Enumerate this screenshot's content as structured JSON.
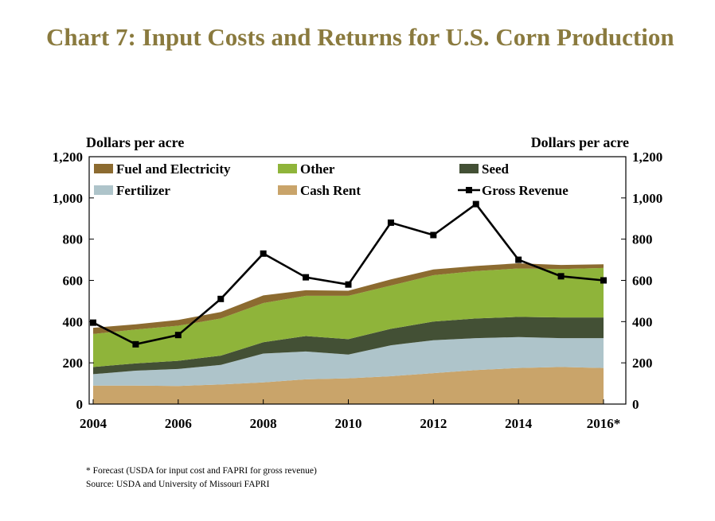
{
  "title": "Chart 7: Input Costs and Returns for U.S. Corn Production",
  "left_axis_label": "Dollars per acre",
  "right_axis_label": "Dollars per acre",
  "footnotes": [
    "* Forecast (USDA for input cost and FAPRI for gross revenue)",
    "Source: USDA and University of Missouri FAPRI"
  ],
  "chart_data": {
    "type": "area",
    "stacked": true,
    "x": [
      2004,
      2005,
      2006,
      2007,
      2008,
      2009,
      2010,
      2011,
      2012,
      2013,
      2014,
      2015,
      2016
    ],
    "x_tick_labels": [
      "2004",
      "2006",
      "2008",
      "2010",
      "2012",
      "2014",
      "2016*"
    ],
    "x_tick_values": [
      2004,
      2006,
      2008,
      2010,
      2012,
      2014,
      2016
    ],
    "ylim": [
      0,
      1200
    ],
    "y_ticks": [
      0,
      200,
      400,
      600,
      800,
      1000,
      1200
    ],
    "y_tick_labels": [
      "0",
      "200",
      "400",
      "600",
      "800",
      "1,000",
      "1,200"
    ],
    "grid": false,
    "legend_position": "top",
    "series": [
      {
        "name": "Cash Rent",
        "color": "#c9a46a",
        "values": [
          90,
          90,
          88,
          95,
          105,
          120,
          125,
          135,
          150,
          165,
          175,
          180,
          175
        ]
      },
      {
        "name": "Fertilizer",
        "color": "#aec4ca",
        "values": [
          55,
          72,
          82,
          95,
          140,
          135,
          115,
          150,
          160,
          155,
          150,
          140,
          145
        ]
      },
      {
        "name": "Seed",
        "color": "#435035",
        "values": [
          35,
          35,
          40,
          45,
          55,
          75,
          75,
          80,
          90,
          95,
          98,
          100,
          100
        ]
      },
      {
        "name": "Other",
        "color": "#8fb43a",
        "values": [
          160,
          165,
          170,
          180,
          190,
          195,
          210,
          210,
          225,
          230,
          235,
          235,
          240
        ]
      },
      {
        "name": "Fuel and Electricity",
        "color": "#8c6b30",
        "values": [
          30,
          25,
          28,
          32,
          37,
          27,
          25,
          30,
          28,
          25,
          25,
          20,
          18
        ]
      }
    ],
    "line_series": {
      "name": "Gross Revenue",
      "color": "#000000",
      "values": [
        395,
        290,
        335,
        510,
        730,
        615,
        580,
        880,
        820,
        970,
        700,
        620,
        600
      ]
    },
    "legend": [
      {
        "name": "Fuel and Electricity",
        "color": "#8c6b30",
        "kind": "swatch"
      },
      {
        "name": "Other",
        "color": "#8fb43a",
        "kind": "swatch"
      },
      {
        "name": "Seed",
        "color": "#435035",
        "kind": "swatch"
      },
      {
        "name": "Fertilizer",
        "color": "#aec4ca",
        "kind": "swatch"
      },
      {
        "name": "Cash Rent",
        "color": "#c9a46a",
        "kind": "swatch"
      },
      {
        "name": "Gross Revenue",
        "color": "#000000",
        "kind": "line"
      }
    ]
  }
}
